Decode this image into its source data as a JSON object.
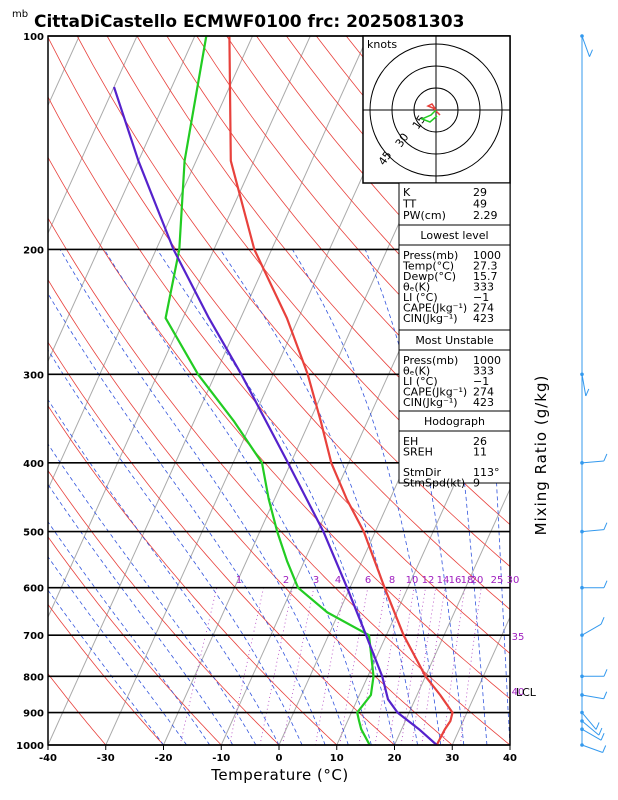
{
  "chart_data": {
    "type": "line",
    "title": "CittaDiCastello ECMWF0100  frc: 2025081303",
    "pressure_unit": "mb",
    "xlabel": "Temperature (°C)",
    "right_label": "Mixing Ratio (g/kg)",
    "xlim": [
      -40,
      40
    ],
    "ylim": [
      1000,
      100
    ],
    "x_ticks": [
      -40,
      -30,
      -20,
      -10,
      0,
      10,
      20,
      30,
      40
    ],
    "pressure_ticks": [
      100,
      200,
      300,
      400,
      500,
      600,
      700,
      800,
      900,
      1000
    ],
    "mixing_ratio_labels": [
      "1",
      "2",
      "3",
      "4",
      "6",
      "8",
      "10",
      "12",
      "14",
      "16",
      "18",
      "20",
      "25",
      "30",
      "35",
      "40"
    ],
    "lcl_label": "LCL",
    "series": [
      {
        "name": "temperature",
        "color": "#e8413c",
        "points": [
          [
            1000,
            27.3
          ],
          [
            950,
            27.5
          ],
          [
            925,
            27.8
          ],
          [
            900,
            27.5
          ],
          [
            850,
            24.0
          ],
          [
            800,
            20.0
          ],
          [
            700,
            13.0
          ],
          [
            600,
            6.0
          ],
          [
            500,
            -2.0
          ],
          [
            450,
            -7.5
          ],
          [
            400,
            -13.0
          ],
          [
            350,
            -18.0
          ],
          [
            300,
            -24.0
          ],
          [
            250,
            -32.0
          ],
          [
            200,
            -43.0
          ],
          [
            150,
            -54.0
          ],
          [
            100,
            -64.0
          ]
        ]
      },
      {
        "name": "dewpoint",
        "color": "#22cc22",
        "points": [
          [
            1000,
            15.7
          ],
          [
            950,
            13.0
          ],
          [
            925,
            12.0
          ],
          [
            900,
            11.0
          ],
          [
            850,
            12.0
          ],
          [
            800,
            11.0
          ],
          [
            700,
            7.0
          ],
          [
            650,
            -2.0
          ],
          [
            600,
            -9.0
          ],
          [
            550,
            -13.0
          ],
          [
            500,
            -17.0
          ],
          [
            450,
            -21.0
          ],
          [
            400,
            -25.0
          ],
          [
            350,
            -33.0
          ],
          [
            300,
            -43.0
          ],
          [
            250,
            -53.0
          ],
          [
            200,
            -56.0
          ],
          [
            150,
            -62.0
          ],
          [
            100,
            -68.0
          ]
        ]
      },
      {
        "name": "parcel",
        "color": "#5522cc",
        "points": [
          [
            1000,
            27.3
          ],
          [
            950,
            23.0
          ],
          [
            900,
            18.0
          ],
          [
            862,
            15.3
          ],
          [
            800,
            12.5
          ],
          [
            700,
            6.5
          ],
          [
            600,
            -0.5
          ],
          [
            500,
            -9.0
          ],
          [
            400,
            -20.5
          ],
          [
            300,
            -35.5
          ],
          [
            250,
            -45.5
          ],
          [
            200,
            -57.0
          ],
          [
            150,
            -70.0
          ],
          [
            118,
            -80.0
          ]
        ]
      }
    ],
    "wind_barbs_pressure": [
      1000,
      950,
      925,
      900,
      850,
      800,
      700,
      600,
      500,
      400,
      300,
      100
    ]
  },
  "hodograph": {
    "units_label": "knots",
    "ring_labels": [
      "15",
      "30",
      "45"
    ]
  },
  "indices": {
    "top": [
      {
        "label": "K",
        "value": "29"
      },
      {
        "label": "TT",
        "value": "49"
      },
      {
        "label": "PW(cm)",
        "value": "2.29"
      }
    ],
    "lowest": {
      "title": "Lowest level",
      "rows": [
        {
          "label": "Press(mb)",
          "value": "1000"
        },
        {
          "label": "Temp(°C)",
          "value": "27.3"
        },
        {
          "label": "Dewp(°C)",
          "value": "15.7"
        },
        {
          "label": "θₑ(K)",
          "value": "333"
        },
        {
          "label": "LI (°C)",
          "value": "−1"
        },
        {
          "label": "CAPE(Jkg⁻¹)",
          "value": "274"
        },
        {
          "label": "CIN(Jkg⁻¹)",
          "value": "423"
        }
      ]
    },
    "unstable": {
      "title": "Most Unstable",
      "rows": [
        {
          "label": "Press(mb)",
          "value": "1000"
        },
        {
          "label": "θₑ(K)",
          "value": "333"
        },
        {
          "label": "LI (°C)",
          "value": "−1"
        },
        {
          "label": "CAPE(Jkg⁻¹)",
          "value": "274"
        },
        {
          "label": "CIN(Jkg⁻¹)",
          "value": "423"
        }
      ]
    },
    "hodo": {
      "title": "Hodograph",
      "rows": [
        {
          "label": "EH",
          "value": "26"
        },
        {
          "label": "SREH",
          "value": "11"
        },
        {
          "label": "StmDir",
          "value": "113°"
        },
        {
          "label": "StmSpd(kt)",
          "value": "9"
        }
      ]
    }
  }
}
